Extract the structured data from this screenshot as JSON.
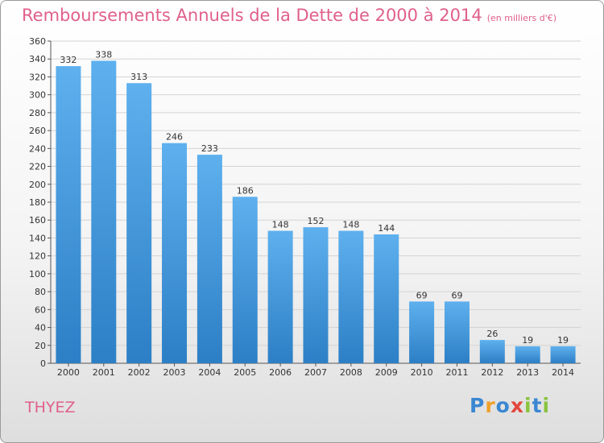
{
  "chart_data": {
    "type": "bar",
    "title": "Remboursements Annuels de la Dette de 2000 à 2014",
    "subtitle": "(en milliers d'€)",
    "categories": [
      "2000",
      "2001",
      "2002",
      "2003",
      "2004",
      "2005",
      "2006",
      "2007",
      "2008",
      "2009",
      "2010",
      "2011",
      "2012",
      "2013",
      "2014"
    ],
    "values": [
      332,
      338,
      313,
      246,
      233,
      186,
      148,
      152,
      148,
      144,
      69,
      69,
      26,
      19,
      19
    ],
    "ylim": [
      0,
      360
    ],
    "yticks": [
      0,
      20,
      40,
      60,
      80,
      100,
      120,
      140,
      160,
      180,
      200,
      220,
      240,
      260,
      280,
      300,
      320,
      340,
      360
    ],
    "grid": true,
    "bar_color": "#3d8fd6"
  },
  "location": "THYEZ",
  "brand": {
    "letters": [
      "P",
      "r",
      "o",
      "x",
      "i",
      "t",
      "i"
    ],
    "colors": [
      "#3a87d2",
      "#f0a02a",
      "#3a87d2",
      "#e2483f",
      "#8ac43f",
      "#3a87d2",
      "#8ac43f"
    ]
  }
}
